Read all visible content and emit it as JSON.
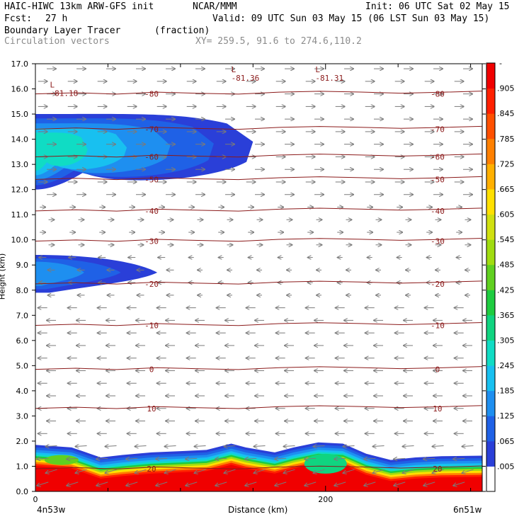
{
  "header": {
    "title_left": "HAIC-HIWC 13km ARW-GFS init",
    "org": "NCAR/MMM",
    "init": "Init: 06 UTC Sat 02 May 15",
    "fcst_label": "Fcst:",
    "fcst_value": "27 h",
    "valid": "Valid: 09 UTC Sun 03 May 15 (06 LST Sun 03 May 15)",
    "field_name": "Boundary Layer Tracer",
    "field_units": "(fraction)",
    "vector_label": "Circulation vectors",
    "xy_label": "XY= 259.5, 91.6 to 274.6,110.2"
  },
  "axes": {
    "ylabel": "Height (km)",
    "xlabel": "Distance (km)",
    "x_left_label": "4n53w",
    "x_right_label": "6n51w"
  },
  "colorbar": {
    "top_label": "-",
    "labels": [
      ".005",
      ".065",
      ".125",
      ".185",
      ".245",
      ".305",
      ".365",
      ".425",
      ".485",
      ".545",
      ".605",
      ".665",
      ".725",
      ".785",
      ".845",
      ".905"
    ],
    "colors": [
      "#ffffff",
      "#2a3fd8",
      "#1f61e6",
      "#1e8ff0",
      "#18c0f0",
      "#10dcc4",
      "#10d480",
      "#1ecc40",
      "#60d020",
      "#a0dc10",
      "#d0e010",
      "#ffe000",
      "#ffb000",
      "#ff8000",
      "#ff5000",
      "#ff2000",
      "#f00000"
    ]
  },
  "chart_data": {
    "type": "heatmap",
    "title": "Boundary Layer Tracer (fraction)",
    "xlabel": "Distance (km)",
    "ylabel": "Height (km)",
    "xlim": [
      0,
      308
    ],
    "ylim": [
      0,
      17
    ],
    "x_ticks": [
      0,
      200
    ],
    "y_ticks": [
      0.0,
      1.0,
      2.0,
      3.0,
      4.0,
      5.0,
      6.0,
      7.0,
      8.0,
      9.0,
      10.0,
      11.0,
      12.0,
      13.0,
      14.0,
      15.0,
      16.0,
      17.0
    ],
    "tracer_regions": [
      {
        "name": "boundary layer",
        "height_km": [
          0,
          1.9
        ],
        "max_fraction": 0.97
      },
      {
        "name": "upper plume",
        "height_km": [
          12.0,
          15.0
        ],
        "x_extent_km": [
          0,
          150
        ],
        "max_fraction": 0.2
      },
      {
        "name": "mid plume",
        "height_km": [
          7.9,
          9.4
        ],
        "x_extent_km": [
          0,
          84
        ],
        "max_fraction": 0.1
      }
    ],
    "temperature_contours": [
      {
        "value": "20",
        "height_km": 0.9
      },
      {
        "value": "10",
        "height_km": 3.3
      },
      {
        "value": "0",
        "height_km": 4.85
      },
      {
        "value": "-10",
        "height_km": 6.6
      },
      {
        "value": "-20",
        "height_km": 8.25
      },
      {
        "value": "-30",
        "height_km": 9.95
      },
      {
        "value": "-40",
        "height_km": 11.15
      },
      {
        "value": "-50",
        "height_km": 12.4
      },
      {
        "value": "-60",
        "height_km": 13.3
      },
      {
        "value": "-70",
        "height_km": 14.4
      },
      {
        "value": "-80",
        "height_km": 15.8
      }
    ],
    "minima": [
      {
        "label": "L",
        "value": "-81.18",
        "x_km": 10,
        "height_km": 16.0
      },
      {
        "label": "L",
        "value": "-81.36",
        "x_km": 135,
        "height_km": 16.6
      },
      {
        "label": "L",
        "value": "-81.31",
        "x_km": 193,
        "height_km": 16.6
      }
    ]
  }
}
